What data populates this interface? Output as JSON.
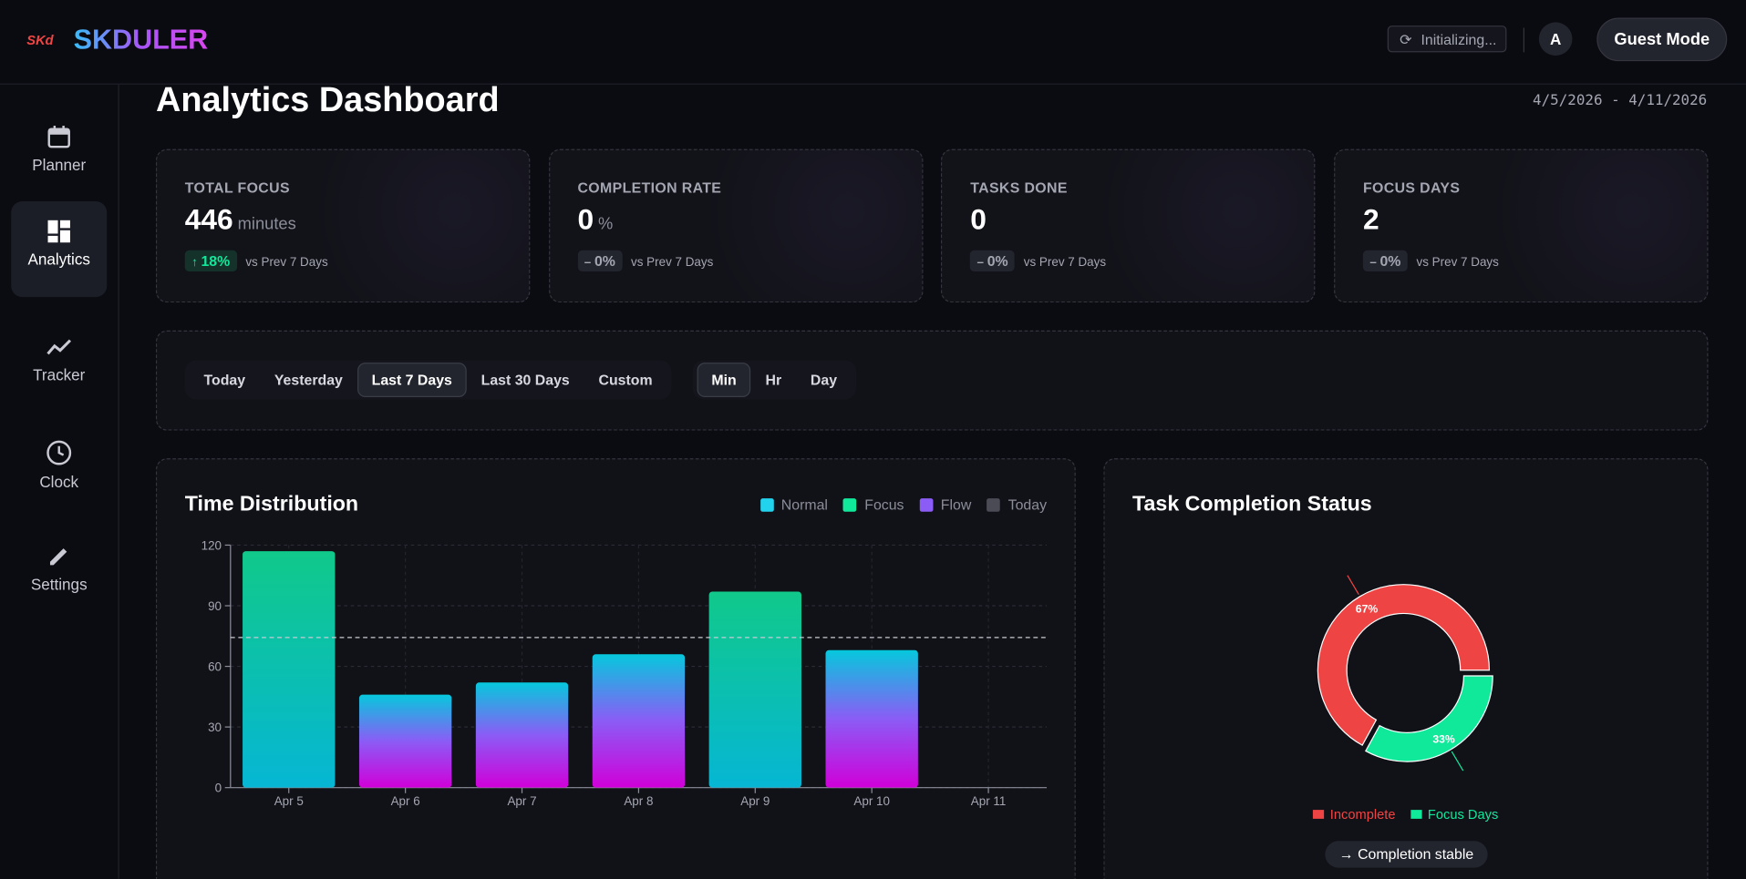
{
  "header": {
    "logo": "SKd",
    "brand": "SKDULER",
    "status": "Initializing...",
    "user": "Guest Mode"
  },
  "sidebar": {
    "items": [
      "Planner",
      "Analytics",
      "Tracker",
      "Clock",
      "Settings"
    ]
  },
  "page": {
    "title": "Analytics Dashboard",
    "date_range": "4/5/2026 - 4/11/2026"
  },
  "stats": [
    {
      "label": "TOTAL FOCUS",
      "value": 446,
      "unit": "minutes",
      "change": "18%",
      "compare": "vs Prev 7 Days"
    },
    {
      "label": "COMPLETION RATE",
      "value": 0,
      "unit": "%",
      "change": "0%",
      "compare": "vs Prev 7 Days"
    },
    {
      "label": "TASKS DONE",
      "value": 0,
      "change": "0%",
      "compare": "vs Prev 7 Days"
    },
    {
      "label": "FOCUS DAYS",
      "value": 2,
      "change": "0%",
      "compare": "vs Prev 7 Days"
    }
  ],
  "filters": {
    "ranges": [
      "Today",
      "Yesterday",
      "Last 7 Days",
      "Last 30 Days",
      "Custom"
    ],
    "units": [
      "Min",
      "Hr",
      "Day"
    ]
  },
  "time_distribution": {
    "type": "bar",
    "title": "Time Distribution",
    "categories": [
      "Apr 5",
      "Apr 6",
      "Apr 7",
      "Apr 8",
      "Apr 9",
      "Apr 10",
      "Apr 11"
    ],
    "series": [
      {
        "name": "Normal",
        "color": "#22d3ee",
        "values": [
          null,
          46,
          52,
          66,
          null,
          68,
          null
        ]
      },
      {
        "name": "Focus",
        "color": "#10e89a",
        "values": [
          117,
          null,
          null,
          null,
          97,
          null,
          null
        ]
      },
      {
        "name": "Flow",
        "color": "#8b5cf6",
        "values": [
          null,
          null,
          null,
          null,
          null,
          null,
          null
        ]
      },
      {
        "name": "Today",
        "color": "#4a4b55",
        "values": [
          null,
          null,
          null,
          null,
          null,
          null,
          0
        ]
      }
    ],
    "ylim": [
      0,
      120
    ],
    "yticks": [
      0,
      30,
      60,
      90,
      120
    ],
    "grid": true,
    "average": 74.3
  },
  "task_completion": {
    "type": "donut",
    "title": "Task Completion Status",
    "categories": [
      "Incomplete",
      "Focus Days"
    ],
    "values": [
      67,
      33
    ],
    "value_labels": [
      "67%",
      "33%"
    ],
    "colors": [
      "#ef4444",
      "#10e89a"
    ],
    "note": "→ Completion stable"
  }
}
